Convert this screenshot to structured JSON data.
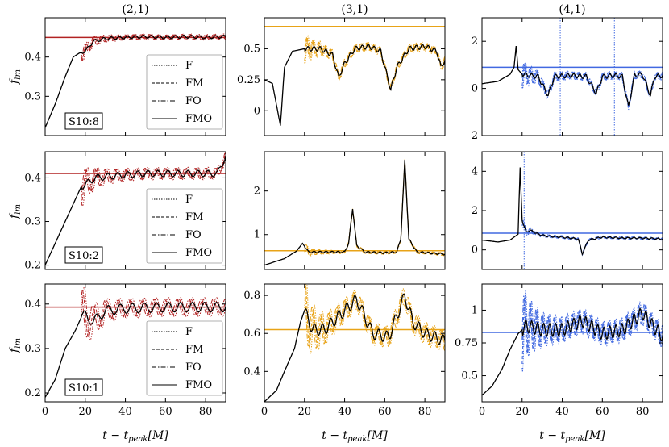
{
  "figure": {
    "xlabel": "t − t",
    "xlabel_sub": "peak",
    "xlabel_unit": "[M]",
    "ylabel": "f",
    "ylabel_sub": "lm",
    "col_titles": [
      "(2,1)",
      "(3,1)",
      "(4,1)"
    ],
    "row_labels": [
      "S10:8",
      "S10:2",
      "S10:1"
    ],
    "legend": [
      "F",
      "FM",
      "FO",
      "FMO"
    ]
  },
  "colors": {
    "c21": "#b22222",
    "c31": "#e8a317",
    "c41": "#4169e1",
    "fmo": "#000000"
  },
  "chart_data": [
    {
      "type": "line",
      "row": 0,
      "col": 0,
      "mode": "(2,1)",
      "ylim": [
        0.2,
        0.5
      ],
      "yticks": [
        0.3,
        0.4
      ],
      "xlim": [
        0,
        90
      ],
      "xticks": [
        0,
        20,
        40,
        60,
        80
      ],
      "hline": 0.45,
      "fmo": [
        [
          0,
          0.22
        ],
        [
          5,
          0.28
        ],
        [
          10,
          0.35
        ],
        [
          14,
          0.4
        ],
        [
          17,
          0.41
        ],
        [
          20,
          0.415
        ],
        [
          24,
          0.44
        ],
        [
          30,
          0.447
        ],
        [
          40,
          0.45
        ],
        [
          50,
          0.452
        ],
        [
          60,
          0.45
        ],
        [
          70,
          0.452
        ],
        [
          80,
          0.45
        ],
        [
          90,
          0.452
        ]
      ],
      "fit_start": 18,
      "fit_amp": 0.006,
      "fit_period": 4
    },
    {
      "type": "line",
      "row": 0,
      "col": 1,
      "mode": "(3,1)",
      "ylim": [
        -0.2,
        0.75
      ],
      "yticks": [
        0.0,
        0.25,
        0.5
      ],
      "xlim": [
        0,
        90
      ],
      "xticks": [
        0,
        20,
        40,
        60,
        80
      ],
      "hline": 0.68,
      "fmo": [
        [
          0,
          0.25
        ],
        [
          4,
          0.22
        ],
        [
          6,
          0.05
        ],
        [
          8,
          -0.12
        ],
        [
          10,
          0.35
        ],
        [
          14,
          0.48
        ],
        [
          20,
          0.5
        ],
        [
          28,
          0.5
        ],
        [
          34,
          0.45
        ],
        [
          37,
          0.27
        ],
        [
          40,
          0.38
        ],
        [
          45,
          0.5
        ],
        [
          52,
          0.52
        ],
        [
          58,
          0.48
        ],
        [
          63,
          0.17
        ],
        [
          66,
          0.35
        ],
        [
          72,
          0.5
        ],
        [
          80,
          0.52
        ],
        [
          86,
          0.48
        ],
        [
          88,
          0.35
        ],
        [
          90,
          0.41
        ]
      ],
      "fit_start": 20,
      "fit_amp": 0.03,
      "fit_period": 3
    },
    {
      "type": "line",
      "row": 0,
      "col": 2,
      "mode": "(4,1)",
      "ylim": [
        -2,
        3
      ],
      "yticks": [
        -2,
        0,
        2
      ],
      "xlim": [
        0,
        90
      ],
      "xticks": [
        0,
        20,
        40,
        60,
        80
      ],
      "hline": 0.9,
      "fmo": [
        [
          0,
          0.2
        ],
        [
          8,
          0.3
        ],
        [
          14,
          0.6
        ],
        [
          16,
          0.9
        ],
        [
          17,
          1.8
        ],
        [
          18,
          0.8
        ],
        [
          20,
          0.6
        ],
        [
          28,
          0.5
        ],
        [
          33,
          -0.3
        ],
        [
          36,
          0.5
        ],
        [
          44,
          0.55
        ],
        [
          52,
          0.5
        ],
        [
          57,
          -0.2
        ],
        [
          60,
          0.5
        ],
        [
          66,
          0.55
        ],
        [
          70,
          0.5
        ],
        [
          73,
          -0.8
        ],
        [
          76,
          0.55
        ],
        [
          80,
          0.6
        ],
        [
          84,
          -0.3
        ],
        [
          86,
          0.5
        ],
        [
          90,
          0.55
        ]
      ],
      "fit_start": 20,
      "fit_amp": 0.15,
      "fit_period": 3,
      "spikes": [
        39,
        66
      ]
    },
    {
      "type": "line",
      "row": 1,
      "col": 0,
      "mode": "(2,1)",
      "ylim": [
        0.19,
        0.46
      ],
      "yticks": [
        0.2,
        0.3,
        0.4
      ],
      "xlim": [
        0,
        90
      ],
      "xticks": [
        0,
        20,
        40,
        60,
        80
      ],
      "hline": 0.41,
      "fmo": [
        [
          0,
          0.2
        ],
        [
          5,
          0.25
        ],
        [
          10,
          0.3
        ],
        [
          15,
          0.35
        ],
        [
          18,
          0.38
        ],
        [
          20,
          0.385
        ],
        [
          25,
          0.4
        ],
        [
          35,
          0.405
        ],
        [
          50,
          0.41
        ],
        [
          70,
          0.41
        ],
        [
          86,
          0.41
        ],
        [
          90,
          0.45
        ]
      ],
      "fit_start": 18,
      "fit_amp": 0.012,
      "fit_period": 5
    },
    {
      "type": "line",
      "row": 1,
      "col": 1,
      "mode": "(3,1)",
      "ylim": [
        0.2,
        2.9
      ],
      "yticks": [
        1,
        2
      ],
      "xlim": [
        0,
        90
      ],
      "xticks": [
        0,
        20,
        40,
        60,
        80
      ],
      "hline": 0.63,
      "fmo": [
        [
          0,
          0.3
        ],
        [
          10,
          0.45
        ],
        [
          16,
          0.62
        ],
        [
          19,
          0.8
        ],
        [
          22,
          0.6
        ],
        [
          30,
          0.6
        ],
        [
          40,
          0.6
        ],
        [
          42,
          0.8
        ],
        [
          44,
          1.6
        ],
        [
          46,
          0.75
        ],
        [
          50,
          0.6
        ],
        [
          60,
          0.58
        ],
        [
          66,
          0.6
        ],
        [
          68,
          0.9
        ],
        [
          70,
          2.7
        ],
        [
          72,
          0.9
        ],
        [
          76,
          0.6
        ],
        [
          90,
          0.55
        ]
      ],
      "fit_start": 20,
      "fit_amp": 0.03,
      "fit_period": 3
    },
    {
      "type": "line",
      "row": 1,
      "col": 2,
      "mode": "(4,1)",
      "ylim": [
        -1,
        5
      ],
      "yticks": [
        0,
        2,
        4
      ],
      "xlim": [
        0,
        90
      ],
      "xticks": [
        0,
        20,
        40,
        60,
        80
      ],
      "hline": 0.85,
      "fmo": [
        [
          0,
          0.5
        ],
        [
          8,
          0.4
        ],
        [
          14,
          0.5
        ],
        [
          18,
          0.8
        ],
        [
          19,
          4.2
        ],
        [
          20,
          1.5
        ],
        [
          22,
          0.9
        ],
        [
          24,
          1.0
        ],
        [
          28,
          0.8
        ],
        [
          32,
          0.7
        ],
        [
          40,
          0.65
        ],
        [
          48,
          0.55
        ],
        [
          50,
          -0.2
        ],
        [
          53,
          0.5
        ],
        [
          60,
          0.65
        ],
        [
          70,
          0.6
        ],
        [
          80,
          0.6
        ],
        [
          90,
          0.55
        ]
      ],
      "fit_start": 20,
      "fit_amp": 0.06,
      "fit_period": 3,
      "spikes": [
        21
      ]
    },
    {
      "type": "line",
      "row": 2,
      "col": 0,
      "mode": "(2,1)",
      "ylim": [
        0.18,
        0.445
      ],
      "yticks": [
        0.2,
        0.3,
        0.4
      ],
      "xlim": [
        0,
        90
      ],
      "xticks": [
        0,
        20,
        40,
        60,
        80
      ],
      "hline": 0.393,
      "fmo": [
        [
          0,
          0.19
        ],
        [
          5,
          0.23
        ],
        [
          10,
          0.3
        ],
        [
          15,
          0.34
        ],
        [
          18,
          0.37
        ],
        [
          20,
          0.375
        ],
        [
          24,
          0.36
        ],
        [
          30,
          0.385
        ],
        [
          40,
          0.39
        ],
        [
          60,
          0.393
        ],
        [
          80,
          0.393
        ],
        [
          90,
          0.393
        ]
      ],
      "fit_start": 18,
      "fit_amp": 0.018,
      "fit_period": 6
    },
    {
      "type": "line",
      "row": 2,
      "col": 1,
      "mode": "(3,1)",
      "ylim": [
        0.24,
        0.86
      ],
      "yticks": [
        0.4,
        0.6,
        0.8
      ],
      "xlim": [
        0,
        90
      ],
      "xticks": [
        0,
        20,
        40,
        60,
        80
      ],
      "hline": 0.62,
      "fmo": [
        [
          0,
          0.24
        ],
        [
          6,
          0.3
        ],
        [
          10,
          0.4
        ],
        [
          15,
          0.52
        ],
        [
          18,
          0.66
        ],
        [
          20,
          0.72
        ],
        [
          24,
          0.62
        ],
        [
          30,
          0.62
        ],
        [
          38,
          0.7
        ],
        [
          46,
          0.78
        ],
        [
          54,
          0.6
        ],
        [
          62,
          0.58
        ],
        [
          70,
          0.8
        ],
        [
          74,
          0.66
        ],
        [
          80,
          0.6
        ],
        [
          90,
          0.56
        ]
      ],
      "fit_start": 20,
      "fit_amp": 0.05,
      "fit_period": 4
    },
    {
      "type": "line",
      "row": 2,
      "col": 2,
      "mode": "(4,1)",
      "ylim": [
        0.3,
        1.2
      ],
      "yticks": [
        0.5,
        0.75,
        1.0
      ],
      "xlim": [
        0,
        90
      ],
      "xticks": [
        0,
        20,
        40,
        60,
        80
      ],
      "hline": 0.83,
      "fmo": [
        [
          0,
          0.35
        ],
        [
          5,
          0.42
        ],
        [
          10,
          0.55
        ],
        [
          14,
          0.7
        ],
        [
          18,
          0.82
        ],
        [
          22,
          0.88
        ],
        [
          30,
          0.85
        ],
        [
          40,
          0.85
        ],
        [
          50,
          0.92
        ],
        [
          60,
          0.82
        ],
        [
          70,
          0.85
        ],
        [
          80,
          0.98
        ],
        [
          84,
          0.9
        ],
        [
          90,
          0.8
        ]
      ],
      "fit_start": 20,
      "fit_amp": 0.08,
      "fit_period": 3
    }
  ]
}
